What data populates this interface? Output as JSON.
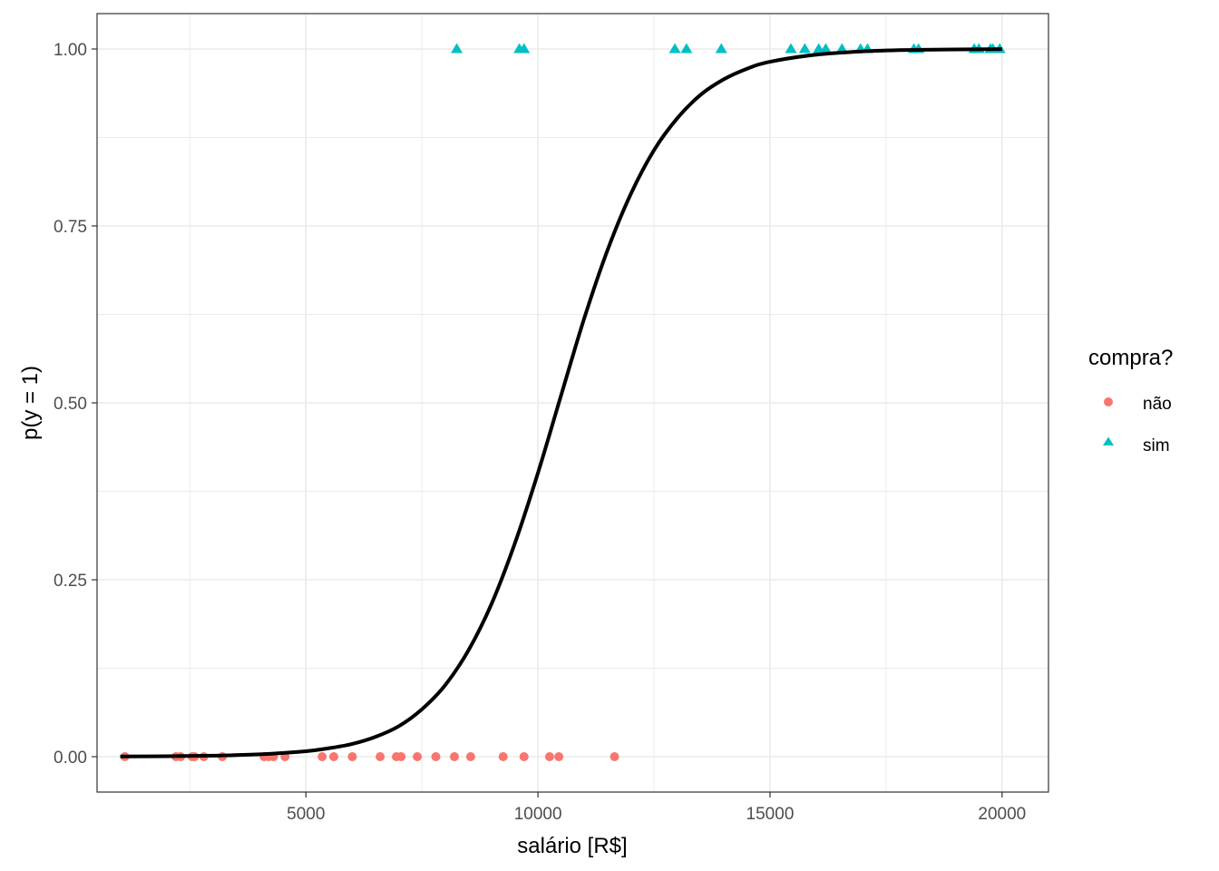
{
  "chart_data": {
    "type": "scatter",
    "xlabel": "salário [R$]",
    "ylabel": "p(y = 1)",
    "xlim": [
      500,
      21000
    ],
    "ylim": [
      -0.05,
      1.05
    ],
    "x_ticks": [
      5000,
      10000,
      15000,
      20000
    ],
    "x_tick_labels": [
      "5000",
      "10000",
      "15000",
      "20000"
    ],
    "y_ticks": [
      0,
      0.25,
      0.5,
      0.75,
      1
    ],
    "y_tick_labels": [
      "0.00",
      "0.25",
      "0.50",
      "0.75",
      "1.00"
    ],
    "grid": true,
    "legend_position": "right",
    "legend": {
      "title": "compra?",
      "entries": [
        {
          "label": "não",
          "shape": "circle",
          "color": "#F8766D"
        },
        {
          "label": "sim",
          "shape": "triangle",
          "color": "#00BFC4"
        }
      ]
    },
    "series": [
      {
        "name": "não",
        "shape": "circle",
        "color": "#F8766D",
        "x": [
          1100,
          2200,
          2300,
          2550,
          2600,
          2800,
          3200,
          4100,
          4200,
          4300,
          4550,
          5350,
          5600,
          6000,
          6600,
          6950,
          7050,
          7400,
          7800,
          8200,
          8550,
          9250,
          9700,
          10250,
          10450,
          11650
        ],
        "y": [
          0,
          0,
          0,
          0,
          0,
          0,
          0,
          0,
          0,
          0,
          0,
          0,
          0,
          0,
          0,
          0,
          0,
          0,
          0,
          0,
          0,
          0,
          0,
          0,
          0,
          0
        ]
      },
      {
        "name": "sim",
        "shape": "triangle",
        "color": "#00BFC4",
        "x": [
          8250,
          9600,
          9700,
          12950,
          13200,
          13950,
          15450,
          15750,
          16050,
          16200,
          16550,
          16950,
          17100,
          18100,
          18200,
          19400,
          19500,
          19750,
          19800,
          19950
        ],
        "y": [
          1,
          1,
          1,
          1,
          1,
          1,
          1,
          1,
          1,
          1,
          1,
          1,
          1,
          1,
          1,
          1,
          1,
          1,
          1,
          1
        ]
      }
    ],
    "fitted_curve": {
      "type": "logistic",
      "x": [
        1000,
        2000,
        3000,
        4000,
        5000,
        5500,
        6000,
        6500,
        7000,
        7500,
        8000,
        8500,
        9000,
        9500,
        10000,
        10500,
        11000,
        11500,
        12000,
        12500,
        13000,
        13500,
        14000,
        14500,
        15000,
        16000,
        17000,
        18000,
        19000,
        20000
      ],
      "y": [
        0.0003,
        0.0006,
        0.0014,
        0.0033,
        0.0077,
        0.012,
        0.018,
        0.028,
        0.043,
        0.067,
        0.101,
        0.15,
        0.216,
        0.301,
        0.401,
        0.511,
        0.62,
        0.716,
        0.795,
        0.857,
        0.902,
        0.935,
        0.957,
        0.972,
        0.982,
        0.992,
        0.9966,
        0.9986,
        0.9994,
        0.9998
      ],
      "color": "#000000"
    }
  }
}
